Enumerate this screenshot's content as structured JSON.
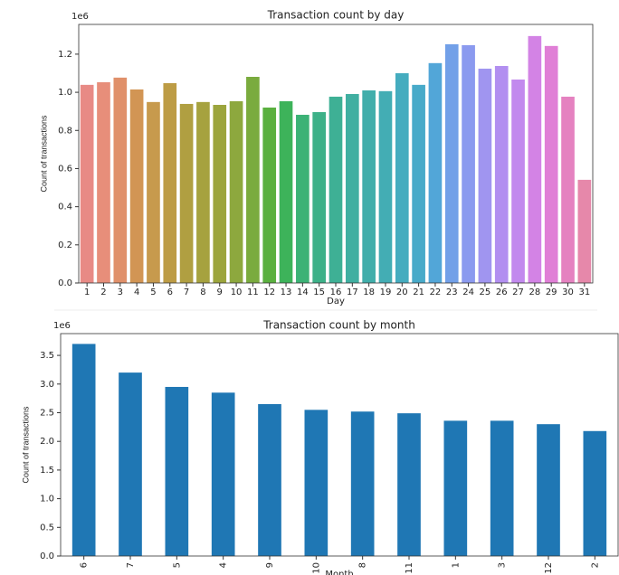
{
  "chart_data": [
    {
      "type": "bar",
      "title": "Transaction count by day",
      "x_label": "Day",
      "y_label": "Count of transactions",
      "y_offset_text": "1e6",
      "categories": [
        "1",
        "2",
        "3",
        "4",
        "5",
        "6",
        "7",
        "8",
        "9",
        "10",
        "11",
        "12",
        "13",
        "14",
        "15",
        "16",
        "17",
        "18",
        "19",
        "20",
        "21",
        "22",
        "23",
        "24",
        "25",
        "26",
        "27",
        "28",
        "29",
        "30",
        "31"
      ],
      "values": [
        1.039,
        1.053,
        1.077,
        1.015,
        0.949,
        1.048,
        0.939,
        0.949,
        0.934,
        0.953,
        1.081,
        0.92,
        0.953,
        0.882,
        0.896,
        0.977,
        0.991,
        1.01,
        1.006,
        1.1,
        1.039,
        1.153,
        1.252,
        1.247,
        1.124,
        1.138,
        1.067,
        1.295,
        1.243,
        0.977,
        0.541
      ],
      "colors": [
        "#e88a85",
        "#e78e7a",
        "#e0906a",
        "#d29554",
        "#c79a4d",
        "#bd9c45",
        "#b09f41",
        "#a6a23f",
        "#9ca53d",
        "#8da83e",
        "#7aab3e",
        "#5ab03f",
        "#3db35a",
        "#3cb276",
        "#3db188",
        "#3eb095",
        "#40afa1",
        "#41aeab",
        "#43adb4",
        "#45acbf",
        "#48aac9",
        "#52a6d8",
        "#72a0e8",
        "#8b9aef",
        "#a095f0",
        "#b28ff0",
        "#c289ee",
        "#d383e5",
        "#e07fd6",
        "#e582c0",
        "#e688aa"
      ],
      "ylim": [
        0,
        1.356
      ],
      "yticks": [
        {
          "value": 0,
          "label": "0.0"
        },
        0.2,
        0.4,
        0.6,
        0.8,
        {
          "value": 1,
          "label": "1.0"
        },
        1.2
      ]
    },
    {
      "type": "bar",
      "title": "Transaction count by month",
      "x_label": "Month",
      "y_label": "Count of transactions",
      "y_offset_text": "1e6",
      "categories": [
        "6",
        "7",
        "5",
        "4",
        "9",
        "10",
        "8",
        "11",
        "1",
        "3",
        "12",
        "2"
      ],
      "values": [
        3.7,
        3.2,
        2.95,
        2.85,
        2.65,
        2.55,
        2.52,
        2.49,
        2.36,
        2.36,
        2.3,
        2.18
      ],
      "color": "#1f77b4",
      "ylim": [
        0,
        3.88
      ],
      "yticks": [
        {
          "value": 0,
          "label": "0.0"
        },
        0.5,
        {
          "value": 1,
          "label": "1.0"
        },
        1.5,
        {
          "value": 2,
          "label": "2.0"
        },
        2.5,
        {
          "value": 3,
          "label": "3.0"
        },
        3.5
      ]
    }
  ]
}
